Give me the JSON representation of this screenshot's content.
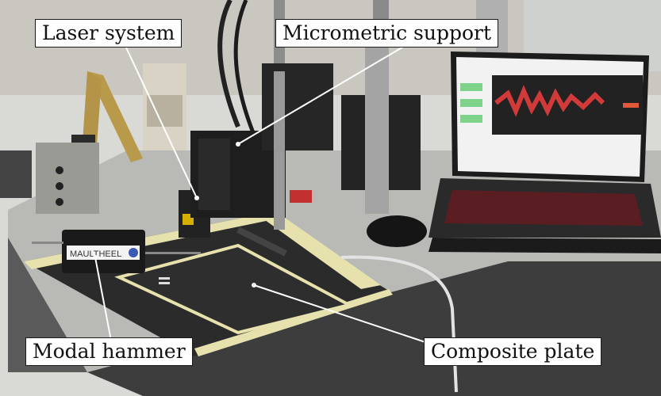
{
  "labels": {
    "laser_system": "Laser system",
    "micrometric_support": "Micrometric support",
    "modal_hammer": "Modal hammer",
    "composite_plate": "Composite plate"
  },
  "laptop_screen": {
    "title_bar": "",
    "has_plot": true
  },
  "hammer_brand": "MAULTHEEL",
  "colors": {
    "table": "#bdbdbd",
    "plate": "#2a2a2a",
    "tape": "#e8e3b0",
    "laptop_keys": "#b8262e",
    "plot_signal": "#d23a3a"
  }
}
